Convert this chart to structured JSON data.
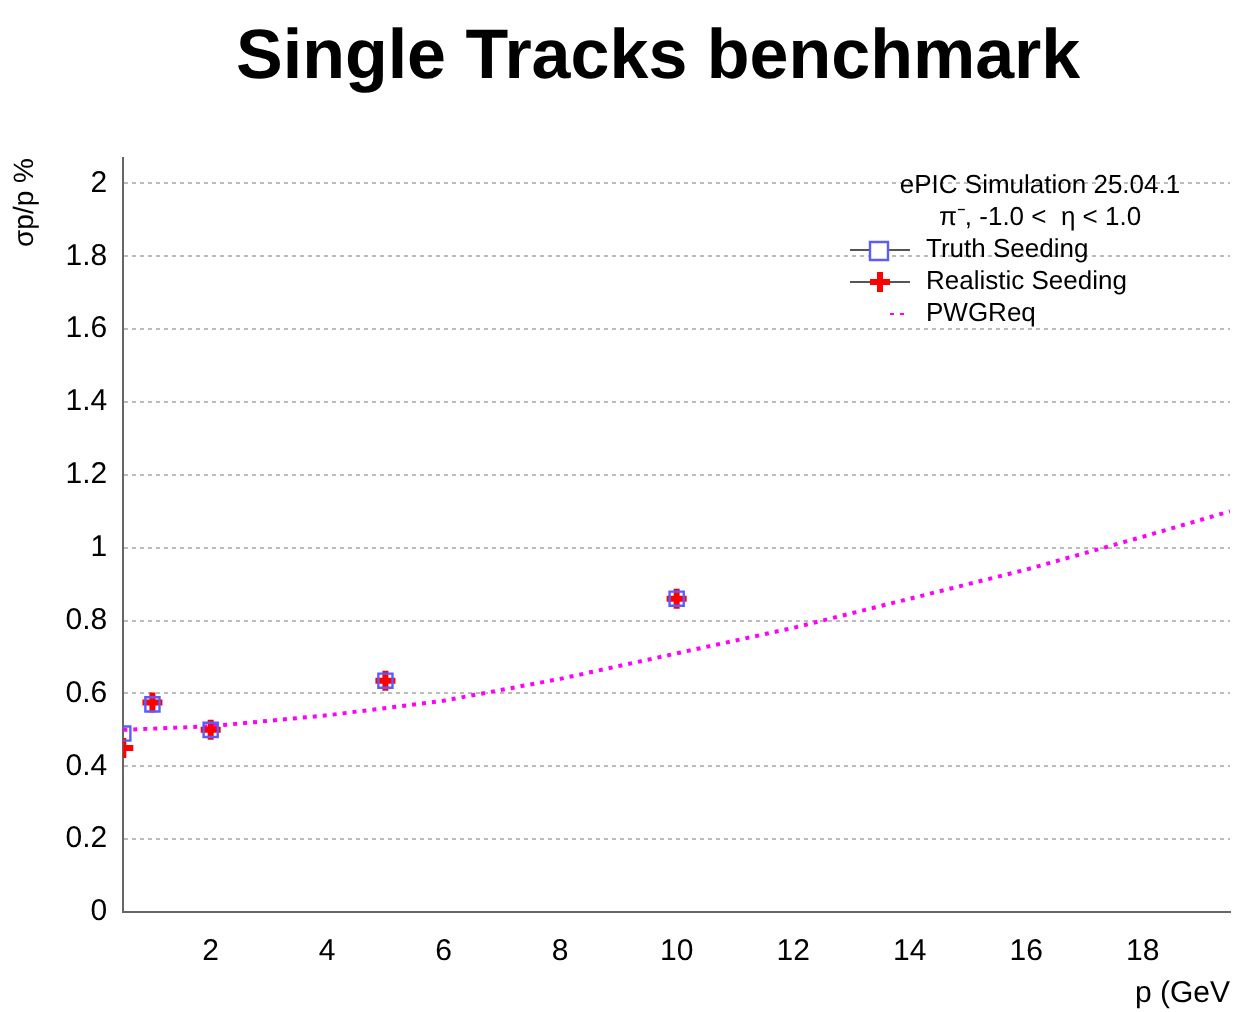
{
  "chart_data": {
    "type": "scatter",
    "title": "Single Tracks benchmark",
    "xlabel": "p (GeV",
    "ylabel": "σp/p %",
    "legend_title": "ePIC Simulation 25.04.1",
    "annotations": [
      "π⁻, -1.0 <  η < 1.0"
    ],
    "xlim": [
      0.5,
      19.5
    ],
    "xticks": [
      2,
      4,
      6,
      8,
      10,
      12,
      14,
      16,
      18
    ],
    "ylim": [
      0,
      2.07
    ],
    "yticks": [
      0,
      0.2,
      0.4,
      0.6,
      0.8,
      1,
      1.2,
      1.4,
      1.6,
      1.8,
      2
    ],
    "grid": "y",
    "legend": "top right",
    "series": [
      {
        "name": "Truth Seeding",
        "color": "#5b5bff",
        "marker": "square",
        "x": [
          0.5,
          1,
          2,
          5,
          10
        ],
        "values": [
          0.49,
          0.57,
          0.5,
          0.635,
          0.86
        ]
      },
      {
        "name": "Realistic Seeding",
        "color": "#ff0000",
        "marker": "cross",
        "x": [
          0.5,
          1,
          2,
          5,
          10
        ],
        "values": [
          0.45,
          0.575,
          0.5,
          0.635,
          0.86
        ]
      },
      {
        "name": "PWGReq",
        "type": "line",
        "color": "#ff00ff",
        "marker": "none",
        "line_style": "dotted",
        "x": [
          0.5,
          2,
          4,
          6,
          8,
          10,
          12,
          14,
          16,
          18,
          19.5
        ],
        "values": [
          0.5,
          0.51,
          0.54,
          0.58,
          0.64,
          0.71,
          0.78,
          0.86,
          0.94,
          1.03,
          1.1
        ]
      }
    ]
  }
}
